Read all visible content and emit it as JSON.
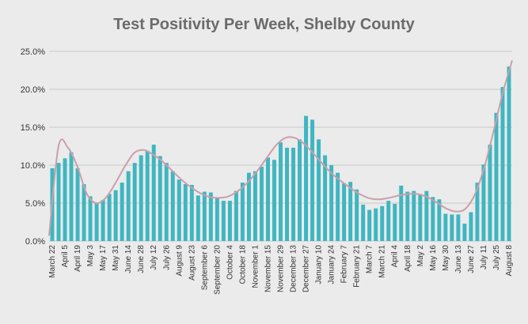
{
  "chart_data": {
    "type": "bar",
    "title": "Test Positivity Per Week, Shelby County",
    "xlabel": "",
    "ylabel": "",
    "ylim": [
      0,
      25
    ],
    "y_tick_labels": [
      "0.0%",
      "5.0%",
      "10.0%",
      "15.0%",
      "20.0%",
      "25.0%"
    ],
    "grid": true,
    "legend": "none",
    "categories": [
      "March 22",
      "",
      "April 5",
      "",
      "April 19",
      "",
      "May 3",
      "",
      "May 17",
      "",
      "May 31",
      "",
      "June 14",
      "",
      "June 28",
      "",
      "July 12",
      "",
      "July 26",
      "",
      "August 9",
      "",
      "August 23",
      "",
      "September 6",
      "",
      "September 20",
      "",
      "October 4",
      "",
      "October 18",
      "",
      "November 1",
      "",
      "November 15",
      "",
      "November 29",
      "",
      "December 13",
      "",
      "December 27",
      "",
      "January 10",
      "",
      "January 24",
      "",
      "February 7",
      "",
      "February 21",
      "",
      "March 7",
      "",
      "March 21",
      "",
      "April 4",
      "",
      "April 18",
      "",
      "May 2",
      "",
      "May 16",
      "",
      "May 30",
      "",
      "June 13",
      "",
      "June 27",
      "",
      "July 11",
      "",
      "July 25",
      "",
      "August 8"
    ],
    "x_tick_labels": [
      "March 22",
      "April 5",
      "April 19",
      "May 3",
      "May 17",
      "May 31",
      "June 14",
      "June 28",
      "July 12",
      "July 26",
      "August 9",
      "August 23",
      "September 6",
      "September 20",
      "October 4",
      "October 18",
      "November 1",
      "November 15",
      "November 29",
      "December 13",
      "December 27",
      "January 10",
      "January 24",
      "February 7",
      "February 21",
      "March 7",
      "March 21",
      "April 4",
      "April 18",
      "May 2",
      "May 16",
      "May 30",
      "June 13",
      "June 27",
      "July 11",
      "July 25",
      "August 8"
    ],
    "values": [
      9.6,
      10.3,
      10.9,
      11.7,
      9.6,
      7.5,
      5.9,
      5.0,
      5.4,
      6.2,
      6.7,
      7.7,
      9.2,
      10.3,
      11.3,
      11.9,
      12.7,
      11.2,
      10.3,
      9.2,
      8.1,
      7.5,
      7.4,
      6.0,
      6.5,
      6.4,
      5.7,
      5.3,
      5.3,
      6.6,
      7.7,
      9.0,
      9.2,
      9.8,
      11.0,
      10.7,
      13.0,
      12.3,
      12.3,
      13.4,
      16.5,
      16.0,
      13.4,
      11.3,
      10.0,
      9.0,
      7.6,
      7.8,
      6.8,
      4.8,
      4.1,
      4.3,
      4.6,
      5.3,
      4.9,
      7.3,
      6.5,
      6.6,
      6.2,
      6.6,
      5.8,
      5.5,
      3.6,
      3.5,
      3.5,
      2.3,
      3.8,
      7.7,
      10.1,
      12.7,
      16.9,
      20.3,
      23.0
    ],
    "trendline": {
      "type": "polynomial",
      "values": [
        0.7,
        12.5,
        12.3,
        9.8,
        6.2,
        5.0,
        5.7,
        7.6,
        9.8,
        11.6,
        12.0,
        11.4,
        10.5,
        9.3,
        8.1,
        7.1,
        6.3,
        5.8,
        5.7,
        5.9,
        6.6,
        7.7,
        9.2,
        10.9,
        12.6,
        13.6,
        13.6,
        12.8,
        11.5,
        10.1,
        8.8,
        7.8,
        6.9,
        6.1,
        5.6,
        5.5,
        5.7,
        6.0,
        6.2,
        6.2,
        5.8,
        5.1,
        4.3,
        3.9,
        4.2,
        6.0,
        9.5,
        14.3,
        19.5,
        23.8
      ]
    },
    "colors": {
      "bar": "#3fb6c1",
      "trendline": "#c9a0ab",
      "grid": "#c8c8c8",
      "background": "#ebebeb",
      "title": "#6b6b6b"
    }
  }
}
